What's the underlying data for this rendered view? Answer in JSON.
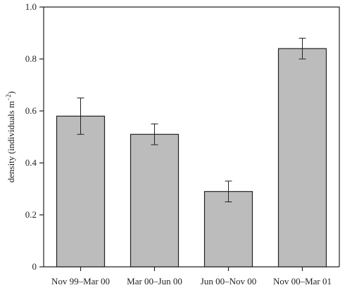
{
  "chart_data": {
    "type": "bar",
    "categories": [
      "Nov 99–Mar 00",
      "Mar 00–Jun 00",
      "Jun 00–Nov 00",
      "Nov 00–Mar 01"
    ],
    "values": [
      0.58,
      0.51,
      0.29,
      0.84
    ],
    "error_low": [
      0.51,
      0.47,
      0.25,
      0.8
    ],
    "error_high": [
      0.65,
      0.55,
      0.33,
      0.88
    ],
    "ylabel_main": "density (individuals m",
    "ylabel_sup": "−2",
    "ylabel_close": ")",
    "ylim": [
      0,
      1.0
    ],
    "yticks": [
      0,
      0.2,
      0.4,
      0.6,
      0.8,
      1.0
    ],
    "ytick_labels": [
      "0",
      "0.2",
      "0.4",
      "0.6",
      "0.8",
      "1.0"
    ],
    "grid": false,
    "colors": {
      "bar_fill": "#bcbcbc",
      "stroke": "#222222"
    }
  }
}
